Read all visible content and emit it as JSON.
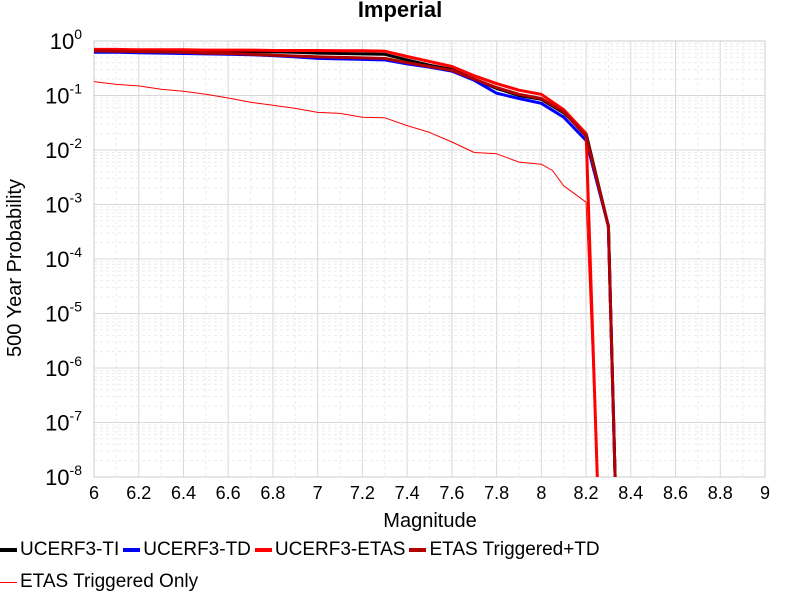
{
  "chart_data": {
    "type": "line",
    "title": "Imperial",
    "xlabel": "Magnitude",
    "ylabel": "500 Year Probability",
    "xlim": [
      6,
      9
    ],
    "ylim": [
      1e-08,
      1
    ],
    "yscale": "log",
    "grid": true,
    "legend_position": "bottom",
    "xticks": [
      "6",
      "6.2",
      "6.4",
      "6.6",
      "6.8",
      "7",
      "7.2",
      "7.4",
      "7.6",
      "7.8",
      "8",
      "8.2",
      "8.4",
      "8.6",
      "8.8",
      "9"
    ],
    "yticks": [
      {
        "base": "10",
        "exp": "0",
        "value": 1
      },
      {
        "base": "10",
        "exp": "-1",
        "value": 0.1
      },
      {
        "base": "10",
        "exp": "-2",
        "value": 0.01
      },
      {
        "base": "10",
        "exp": "-3",
        "value": 0.001
      },
      {
        "base": "10",
        "exp": "-4",
        "value": 0.0001
      },
      {
        "base": "10",
        "exp": "-5",
        "value": 1e-05
      },
      {
        "base": "10",
        "exp": "-6",
        "value": 1e-06
      },
      {
        "base": "10",
        "exp": "-7",
        "value": 1e-07
      },
      {
        "base": "10",
        "exp": "-8",
        "value": 1e-08
      }
    ],
    "series": [
      {
        "name": "UCERF3-TI",
        "color": "#000000",
        "width": 3,
        "x": [
          6.0,
          6.1,
          6.2,
          6.3,
          6.4,
          6.5,
          6.6,
          6.7,
          6.8,
          6.9,
          7.0,
          7.1,
          7.2,
          7.3,
          7.4,
          7.5,
          7.6,
          7.7,
          7.8,
          7.9,
          8.0,
          8.1,
          8.2,
          8.3,
          8.33
        ],
        "y": [
          0.68,
          0.68,
          0.67,
          0.67,
          0.66,
          0.66,
          0.65,
          0.64,
          0.63,
          0.62,
          0.6,
          0.59,
          0.58,
          0.57,
          0.45,
          0.36,
          0.3,
          0.2,
          0.135,
          0.1,
          0.085,
          0.048,
          0.02,
          0.0004,
          1e-08
        ]
      },
      {
        "name": "UCERF3-TD",
        "color": "#0000ff",
        "width": 3,
        "x": [
          6.0,
          6.1,
          6.2,
          6.3,
          6.4,
          6.5,
          6.6,
          6.7,
          6.8,
          6.9,
          7.0,
          7.1,
          7.2,
          7.3,
          7.4,
          7.5,
          7.6,
          7.7,
          7.8,
          7.9,
          8.0,
          8.1,
          8.2,
          8.3,
          8.33
        ],
        "y": [
          0.62,
          0.62,
          0.61,
          0.6,
          0.59,
          0.58,
          0.57,
          0.56,
          0.54,
          0.51,
          0.48,
          0.47,
          0.46,
          0.45,
          0.38,
          0.33,
          0.28,
          0.19,
          0.11,
          0.088,
          0.072,
          0.04,
          0.015,
          0.0004,
          1e-08
        ]
      },
      {
        "name": "UCERF3-ETAS",
        "color": "#ff0000",
        "width": 3,
        "x": [
          6.0,
          6.1,
          6.2,
          6.3,
          6.4,
          6.5,
          6.6,
          6.7,
          6.8,
          6.9,
          7.0,
          7.1,
          7.2,
          7.3,
          7.4,
          7.5,
          7.6,
          7.7,
          7.8,
          7.9,
          8.0,
          8.1,
          8.2,
          8.25
        ],
        "y": [
          0.7,
          0.7,
          0.69,
          0.69,
          0.69,
          0.68,
          0.68,
          0.68,
          0.67,
          0.67,
          0.67,
          0.66,
          0.66,
          0.65,
          0.52,
          0.42,
          0.34,
          0.23,
          0.165,
          0.125,
          0.105,
          0.055,
          0.02,
          1e-08
        ]
      },
      {
        "name": "ETAS Triggered+TD",
        "color": "#b00000",
        "width": 3,
        "x": [
          6.0,
          6.1,
          6.2,
          6.3,
          6.4,
          6.5,
          6.6,
          6.7,
          6.8,
          6.9,
          7.0,
          7.1,
          7.2,
          7.3,
          7.4,
          7.5,
          7.6,
          7.7,
          7.8,
          7.9,
          8.0,
          8.1,
          8.2,
          8.3,
          8.33
        ],
        "y": [
          0.66,
          0.65,
          0.64,
          0.63,
          0.62,
          0.6,
          0.59,
          0.57,
          0.55,
          0.53,
          0.51,
          0.5,
          0.49,
          0.48,
          0.4,
          0.34,
          0.29,
          0.2,
          0.14,
          0.105,
          0.088,
          0.05,
          0.018,
          0.0004,
          1e-08
        ]
      },
      {
        "name": "ETAS Triggered Only",
        "color": "#ff0000",
        "width": 1,
        "x": [
          6.0,
          6.1,
          6.2,
          6.3,
          6.4,
          6.5,
          6.6,
          6.7,
          6.8,
          6.9,
          7.0,
          7.1,
          7.2,
          7.3,
          7.4,
          7.5,
          7.6,
          7.7,
          7.8,
          7.9,
          8.0,
          8.05,
          8.1,
          8.2,
          8.25
        ],
        "y": [
          0.18,
          0.16,
          0.15,
          0.13,
          0.12,
          0.105,
          0.09,
          0.075,
          0.066,
          0.058,
          0.049,
          0.047,
          0.04,
          0.039,
          0.028,
          0.021,
          0.014,
          0.009,
          0.0085,
          0.006,
          0.0055,
          0.0042,
          0.0022,
          0.0011,
          1e-08
        ]
      }
    ]
  }
}
